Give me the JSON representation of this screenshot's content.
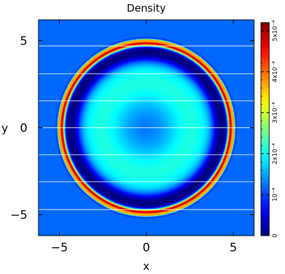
{
  "chart_data": {
    "type": "heatmap",
    "title": "Density",
    "xlabel": "x",
    "ylabel": "y",
    "xlim": [
      -6.2,
      6.2
    ],
    "ylim": [
      -6.2,
      6.2
    ],
    "x_ticks": [
      {
        "value": -5,
        "label": "−5"
      },
      {
        "value": 0,
        "label": "0"
      },
      {
        "value": 5,
        "label": "5"
      }
    ],
    "y_ticks": [
      {
        "value": 5,
        "label": "5"
      },
      {
        "value": 0,
        "label": "0"
      },
      {
        "value": -5,
        "label": "−5"
      }
    ],
    "colorbar": {
      "min": 0,
      "max": 0.00052,
      "colormap": "jet",
      "ticks": [
        {
          "value": 0,
          "label": "0"
        },
        {
          "value": 0.0001,
          "label": "10⁻⁴"
        },
        {
          "value": 0.0002,
          "label": "2x10⁻⁴"
        },
        {
          "value": 0.0003,
          "label": "3x10⁻⁴"
        },
        {
          "value": 0.0004,
          "label": "4x10⁻⁴"
        },
        {
          "value": 0.0005,
          "label": "5x10⁻⁴"
        }
      ]
    },
    "field": {
      "background": 0.000118,
      "center_value": 0.000122,
      "inner_ring_radius": 2.6,
      "inner_ring_value": 0.00021,
      "trough_radius": 4.3,
      "trough_value": 0.0,
      "crest_radius": 4.85,
      "crest_value": 0.00046,
      "outer_radius": 5.05
    },
    "streak_lines_y": [
      4.7,
      3.1,
      1.55,
      0,
      -1.55,
      -3.1,
      -4.7
    ],
    "grid": false
  }
}
